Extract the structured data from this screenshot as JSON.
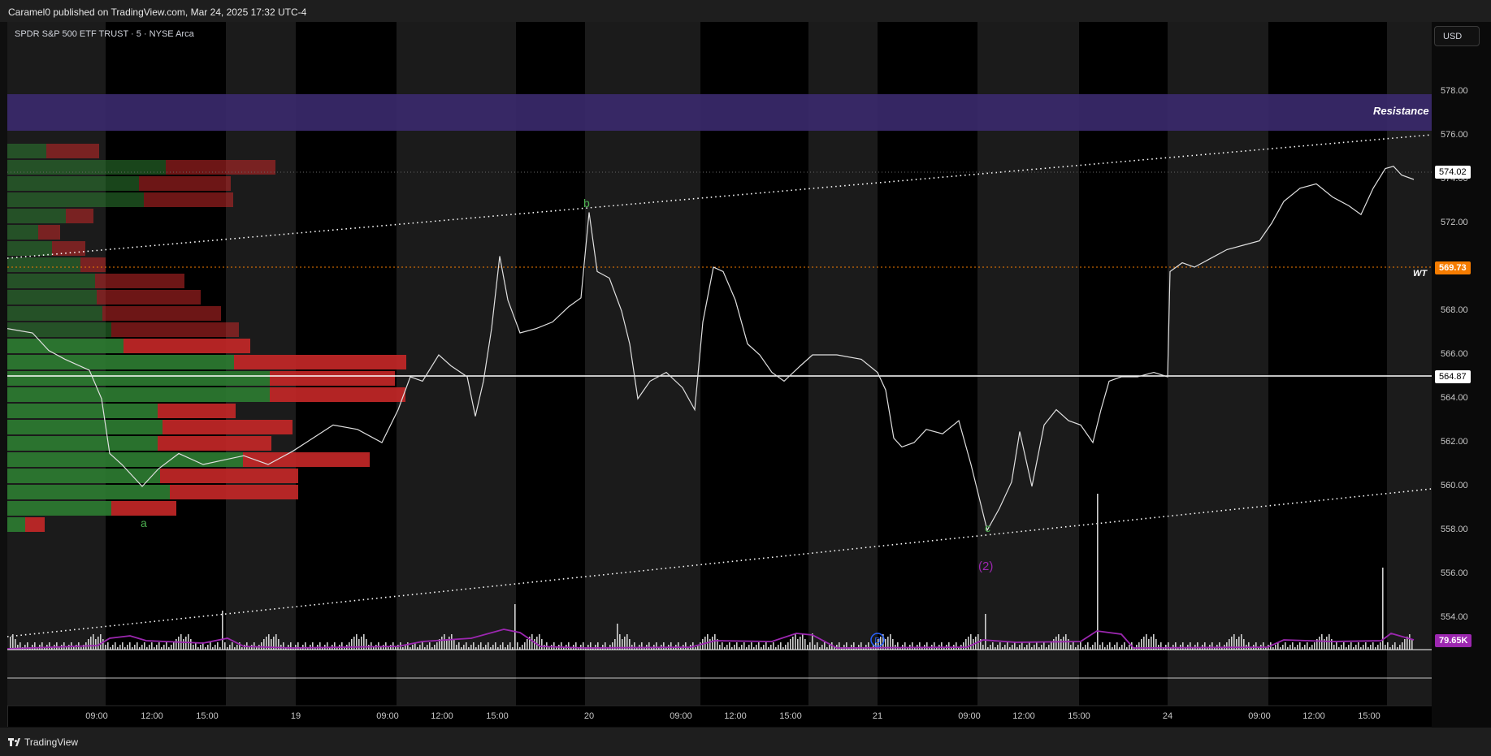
{
  "header": {
    "published_text": "Caramel0 published on TradingView.com, Mar 24, 2025 17:32 UTC-4"
  },
  "symbol": {
    "title": "SPDR S&P 500 ETF TRUST · 5 · NYSE Arca"
  },
  "currency_button": "USD",
  "price_axis": {
    "ticks": [
      "578.00",
      "576.00",
      "574.00",
      "572.00",
      "570.00",
      "568.00",
      "566.00",
      "564.00",
      "562.00",
      "560.00",
      "558.00",
      "556.00",
      "554.00"
    ],
    "last_price": "574.02",
    "orange_level": "569.73",
    "white_level": "564.87",
    "volume_label": "79.65K",
    "colors": {
      "orange": "#f57c00",
      "volume_purple": "#9c27b0",
      "resistance_band": "#3b2a6e",
      "vp_green": "#2e7d32",
      "vp_red": "#c62828"
    }
  },
  "time_axis": {
    "ticks": [
      "09:00",
      "12:00",
      "15:00",
      "19",
      "09:00",
      "12:00",
      "15:00",
      "20",
      "09:00",
      "12:00",
      "15:00",
      "21",
      "09:00",
      "12:00",
      "15:00",
      "24",
      "09:00",
      "12:00",
      "15:00"
    ]
  },
  "annotations": {
    "resistance": "Resistance",
    "wt": "WT",
    "wave_a": "a",
    "wave_b": "b",
    "wave_c": "c",
    "wave_2": "(2)",
    "dividend_marker": "D"
  },
  "footer": {
    "logo_text": "TradingView"
  }
}
